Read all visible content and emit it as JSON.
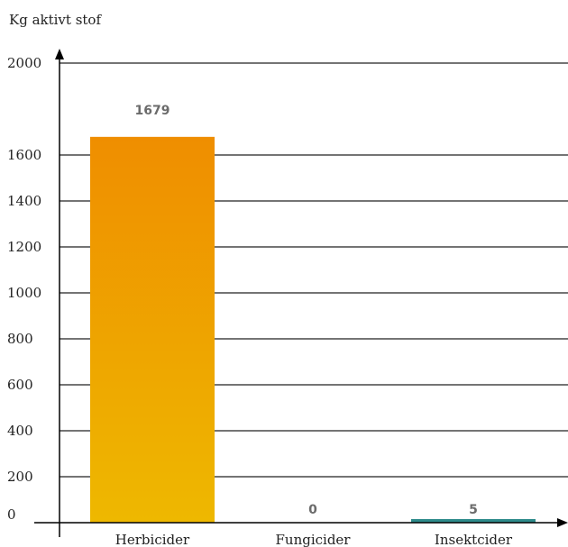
{
  "chart_data": {
    "type": "bar",
    "ylabel": "Kg aktivt stof",
    "xlabel": "",
    "categories": [
      "Herbicider",
      "Fungicider",
      "Insektcider"
    ],
    "values": [
      1679,
      0,
      5
    ],
    "data_labels": [
      "1679",
      "0",
      "5"
    ],
    "ylim": [
      0,
      2000
    ],
    "yticks": [
      0,
      200,
      400,
      600,
      800,
      1000,
      1200,
      1400,
      1600,
      2000
    ],
    "ytick_labels": [
      "0",
      "200",
      "400",
      "600",
      "800",
      "1000",
      "1200",
      "1400",
      "1600",
      "2000"
    ],
    "grid": true,
    "legend": "none",
    "colors": {
      "bar_gradient_top": "#ef8e00",
      "bar_gradient_bottom": "#eeb800",
      "teal_bar": "#2e8b8b",
      "grid": "#222222",
      "value_label": "#6b6b6b"
    }
  }
}
